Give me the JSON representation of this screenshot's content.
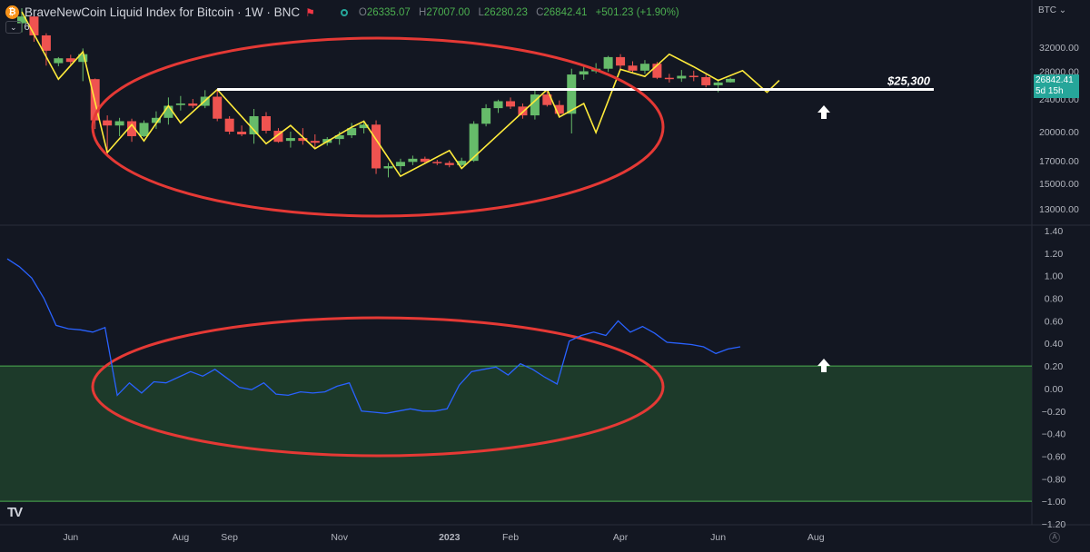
{
  "header": {
    "coin_icon": "bitcoin-icon",
    "coin_glyph": "₿",
    "title": "BraveNewCoin Liquid Index for Bitcoin · 1W · BNC",
    "ohlc": {
      "o_label": "O",
      "o": "26335.07",
      "h_label": "H",
      "h": "27007.00",
      "l_label": "L",
      "l": "26280.23",
      "c_label": "C",
      "c": "26842.41",
      "change": "+501.23 (+1.90%)"
    },
    "collapse_label": "6"
  },
  "currency_label": "BTC",
  "price_tag": {
    "value": "26842.41",
    "countdown": "5d 15h"
  },
  "branding": "TV",
  "auto_button": "A",
  "colors": {
    "background": "#131722",
    "up": "#66bb6a",
    "down": "#ef5350",
    "zigzag": "#ffeb3b",
    "oscillator": "#2962ff",
    "zone": "#1d3a2a",
    "ellipse": "#e53935",
    "level": "#ffffff"
  },
  "chart_data": [
    {
      "type": "candlestick",
      "title": "BraveNewCoin Liquid Index for Bitcoin · 1W · BNC",
      "y_scale": "log",
      "ylim": [
        12000,
        40000
      ],
      "yticks": [
        13000,
        15000,
        17000,
        20000,
        24000,
        28000,
        32000
      ],
      "ytick_labels": [
        "13000.00",
        "15000.00",
        "17000.00",
        "20000.00",
        "24000.00",
        "28000.00",
        "32000.00"
      ],
      "x_labels": [
        "Jun",
        "Aug",
        "Sep",
        "Nov",
        "2023",
        "Feb",
        "Apr",
        "Jun",
        "Aug"
      ],
      "x_label_week_index": [
        4,
        13,
        17,
        26,
        35,
        40,
        49,
        57,
        65
      ],
      "candles": [
        {
          "o": 36600,
          "h": 39800,
          "l": 34800,
          "c": 38000
        },
        {
          "o": 38000,
          "h": 38800,
          "l": 33000,
          "c": 34200
        },
        {
          "o": 34200,
          "h": 34600,
          "l": 28900,
          "c": 31400
        },
        {
          "o": 29300,
          "h": 30300,
          "l": 28800,
          "c": 30100
        },
        {
          "o": 30100,
          "h": 30700,
          "l": 28800,
          "c": 29500
        },
        {
          "o": 29500,
          "h": 31800,
          "l": 26500,
          "c": 30800
        },
        {
          "o": 26800,
          "h": 26900,
          "l": 20300,
          "c": 21300
        },
        {
          "o": 21300,
          "h": 21900,
          "l": 17600,
          "c": 20700
        },
        {
          "o": 20700,
          "h": 21600,
          "l": 19500,
          "c": 21200
        },
        {
          "o": 21200,
          "h": 21500,
          "l": 18900,
          "c": 19500
        },
        {
          "o": 19500,
          "h": 21300,
          "l": 19400,
          "c": 21000
        },
        {
          "o": 21000,
          "h": 22400,
          "l": 20300,
          "c": 21600
        },
        {
          "o": 21600,
          "h": 24200,
          "l": 20800,
          "c": 23100
        },
        {
          "o": 23200,
          "h": 24400,
          "l": 22500,
          "c": 23400
        },
        {
          "o": 23400,
          "h": 24000,
          "l": 22800,
          "c": 23100
        },
        {
          "o": 23100,
          "h": 25200,
          "l": 22800,
          "c": 24300
        },
        {
          "o": 24300,
          "h": 25200,
          "l": 21200,
          "c": 21500
        },
        {
          "o": 21500,
          "h": 21800,
          "l": 19700,
          "c": 20000
        },
        {
          "o": 20000,
          "h": 20700,
          "l": 19500,
          "c": 19700
        },
        {
          "o": 19700,
          "h": 22700,
          "l": 18700,
          "c": 21800
        },
        {
          "o": 21800,
          "h": 22300,
          "l": 19800,
          "c": 20100
        },
        {
          "o": 20100,
          "h": 20400,
          "l": 18800,
          "c": 18900
        },
        {
          "o": 19000,
          "h": 20000,
          "l": 18300,
          "c": 19300
        },
        {
          "o": 19300,
          "h": 20400,
          "l": 18600,
          "c": 19000
        },
        {
          "o": 19000,
          "h": 19700,
          "l": 18300,
          "c": 18800
        },
        {
          "o": 18800,
          "h": 19400,
          "l": 18500,
          "c": 19200
        },
        {
          "o": 19200,
          "h": 20000,
          "l": 18600,
          "c": 19600
        },
        {
          "o": 19600,
          "h": 21000,
          "l": 19300,
          "c": 20400
        },
        {
          "o": 20400,
          "h": 21300,
          "l": 19800,
          "c": 20800
        },
        {
          "o": 20800,
          "h": 21300,
          "l": 15800,
          "c": 16300
        },
        {
          "o": 16300,
          "h": 16800,
          "l": 15500,
          "c": 16500
        },
        {
          "o": 16500,
          "h": 17200,
          "l": 15900,
          "c": 16900
        },
        {
          "o": 16900,
          "h": 17500,
          "l": 16600,
          "c": 17200
        },
        {
          "o": 17200,
          "h": 17400,
          "l": 16800,
          "c": 16900
        },
        {
          "o": 16900,
          "h": 17100,
          "l": 16600,
          "c": 16800
        },
        {
          "o": 16800,
          "h": 17000,
          "l": 16400,
          "c": 16600
        },
        {
          "o": 16600,
          "h": 17300,
          "l": 16500,
          "c": 17000
        },
        {
          "o": 17000,
          "h": 21200,
          "l": 16900,
          "c": 20900
        },
        {
          "o": 20900,
          "h": 23300,
          "l": 20600,
          "c": 22800
        },
        {
          "o": 22800,
          "h": 23900,
          "l": 22200,
          "c": 23700
        },
        {
          "o": 23700,
          "h": 24200,
          "l": 22700,
          "c": 23000
        },
        {
          "o": 23000,
          "h": 23400,
          "l": 21500,
          "c": 21900
        },
        {
          "o": 21900,
          "h": 25200,
          "l": 21400,
          "c": 24600
        },
        {
          "o": 24600,
          "h": 25000,
          "l": 23000,
          "c": 23200
        },
        {
          "o": 23200,
          "h": 23800,
          "l": 21700,
          "c": 22100
        },
        {
          "o": 22100,
          "h": 28400,
          "l": 19800,
          "c": 27500
        },
        {
          "o": 27500,
          "h": 28900,
          "l": 26700,
          "c": 28000
        },
        {
          "o": 28000,
          "h": 29300,
          "l": 27700,
          "c": 28400
        },
        {
          "o": 28400,
          "h": 30500,
          "l": 27900,
          "c": 30300
        },
        {
          "o": 30300,
          "h": 30800,
          "l": 28200,
          "c": 28900
        },
        {
          "o": 28900,
          "h": 29600,
          "l": 27800,
          "c": 28100
        },
        {
          "o": 28100,
          "h": 29800,
          "l": 27600,
          "c": 29200
        },
        {
          "o": 29200,
          "h": 29500,
          "l": 26800,
          "c": 27000
        },
        {
          "o": 27000,
          "h": 27600,
          "l": 26300,
          "c": 26900
        },
        {
          "o": 26900,
          "h": 28200,
          "l": 26400,
          "c": 27300
        },
        {
          "o": 27300,
          "h": 28100,
          "l": 26500,
          "c": 27100
        },
        {
          "o": 27100,
          "h": 27500,
          "l": 25600,
          "c": 25900
        },
        {
          "o": 25900,
          "h": 26800,
          "l": 24900,
          "c": 26300
        },
        {
          "o": 26335,
          "h": 27007,
          "l": 26280,
          "c": 26842
        }
      ],
      "zigzag": [
        {
          "i": 0,
          "v": 39000
        },
        {
          "i": 3,
          "v": 26800
        },
        {
          "i": 5,
          "v": 31200
        },
        {
          "i": 7,
          "v": 17800
        },
        {
          "i": 9,
          "v": 20800
        },
        {
          "i": 10,
          "v": 19000
        },
        {
          "i": 12,
          "v": 23100
        },
        {
          "i": 13,
          "v": 21000
        },
        {
          "i": 16,
          "v": 25300
        },
        {
          "i": 20,
          "v": 18700
        },
        {
          "i": 22,
          "v": 20700
        },
        {
          "i": 24,
          "v": 18200
        },
        {
          "i": 27,
          "v": 20500
        },
        {
          "i": 28,
          "v": 21200
        },
        {
          "i": 31,
          "v": 15600
        },
        {
          "i": 35,
          "v": 18000
        },
        {
          "i": 36,
          "v": 16300
        },
        {
          "i": 43,
          "v": 25300
        },
        {
          "i": 44,
          "v": 21700
        },
        {
          "i": 46,
          "v": 23400
        },
        {
          "i": 47,
          "v": 19900
        },
        {
          "i": 49,
          "v": 28300
        },
        {
          "i": 51,
          "v": 27200
        },
        {
          "i": 53,
          "v": 30800
        },
        {
          "i": 55,
          "v": 28700
        },
        {
          "i": 57,
          "v": 26600
        },
        {
          "i": 59,
          "v": 28100
        },
        {
          "i": 61,
          "v": 24900
        },
        {
          "i": 62,
          "v": 26600
        }
      ],
      "level": {
        "value": 25300,
        "label": "$25,300"
      },
      "current_price": 26842.41
    },
    {
      "type": "line",
      "ylim": [
        -1.2,
        1.4
      ],
      "yticks": [
        1.4,
        1.2,
        1.0,
        0.8,
        0.6,
        0.4,
        0.2,
        0.0,
        -0.2,
        -0.4,
        -0.6,
        -0.8,
        -1.0,
        -1.2
      ],
      "ytick_labels": [
        "1.40",
        "1.20",
        "1.00",
        "0.80",
        "0.60",
        "0.40",
        "0.20",
        "0.00",
        "−0.20",
        "−0.40",
        "−0.60",
        "−0.80",
        "−1.00",
        "−1.20"
      ],
      "zone": [
        -1.0,
        0.2
      ],
      "values": [
        1.15,
        1.08,
        0.98,
        0.8,
        0.56,
        0.53,
        0.52,
        0.5,
        0.54,
        -0.06,
        0.05,
        -0.04,
        0.06,
        0.05,
        0.1,
        0.15,
        0.11,
        0.17,
        0.09,
        0.01,
        -0.01,
        0.05,
        -0.05,
        -0.06,
        -0.03,
        -0.04,
        -0.03,
        0.02,
        0.05,
        -0.2,
        -0.21,
        -0.22,
        -0.2,
        -0.18,
        -0.2,
        -0.2,
        -0.18,
        0.03,
        0.15,
        0.17,
        0.19,
        0.12,
        0.22,
        0.17,
        0.1,
        0.04,
        0.42,
        0.47,
        0.5,
        0.47,
        0.6,
        0.5,
        0.55,
        0.49,
        0.41,
        0.4,
        0.39,
        0.37,
        0.31,
        0.35,
        0.37
      ]
    }
  ]
}
